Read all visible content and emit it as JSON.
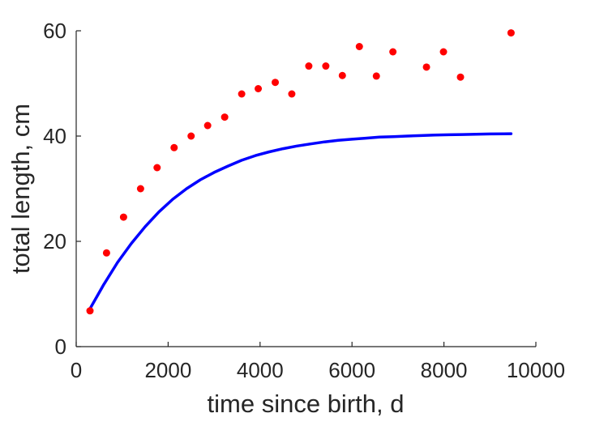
{
  "chart_data": {
    "type": "scatter",
    "xlabel": "time since birth, d",
    "ylabel": "total length, cm",
    "xlim": [
      0,
      10000
    ],
    "ylim": [
      0,
      60
    ],
    "x_ticks": [
      0,
      2000,
      4000,
      6000,
      8000,
      10000
    ],
    "y_ticks": [
      0,
      20,
      40,
      60
    ],
    "x_tick_labels": [
      "0",
      "2000",
      "4000",
      "6000",
      "8000",
      "10000"
    ],
    "y_tick_labels": [
      "0",
      "20",
      "40",
      "60"
    ],
    "grid": false,
    "series": [
      {
        "kind": "scatter",
        "color": "#ff0000",
        "marker": "circle",
        "x": [
          300,
          660,
          1030,
          1400,
          1760,
          2130,
          2500,
          2860,
          3230,
          3600,
          3960,
          4330,
          4690,
          5060,
          5430,
          5790,
          6160,
          6530,
          6890,
          7620,
          7990,
          8360,
          9460
        ],
        "y": [
          6.8,
          17.8,
          24.6,
          30.0,
          34.0,
          37.8,
          40.0,
          42.0,
          43.6,
          48.0,
          49.0,
          50.2,
          48.0,
          53.3,
          53.3,
          51.5,
          57.0,
          51.4,
          56.0,
          53.1,
          56.0,
          51.2,
          59.6
        ]
      },
      {
        "kind": "line",
        "color": "#0000ff",
        "x": [
          300,
          600,
          900,
          1200,
          1500,
          1800,
          2100,
          2400,
          2700,
          3000,
          3300,
          3600,
          3900,
          4200,
          4500,
          4800,
          5100,
          5400,
          5700,
          6000,
          6300,
          6600,
          6900,
          7200,
          7500,
          7800,
          8100,
          8400,
          8700,
          9000,
          9300,
          9460
        ],
        "y": [
          7.2,
          11.8,
          16.0,
          19.6,
          22.8,
          25.6,
          28.0,
          30.0,
          31.7,
          33.1,
          34.3,
          35.4,
          36.3,
          37.0,
          37.6,
          38.1,
          38.5,
          38.9,
          39.2,
          39.4,
          39.6,
          39.8,
          39.9,
          40.0,
          40.1,
          40.2,
          40.25,
          40.3,
          40.35,
          40.4,
          40.43,
          40.45
        ]
      }
    ]
  }
}
